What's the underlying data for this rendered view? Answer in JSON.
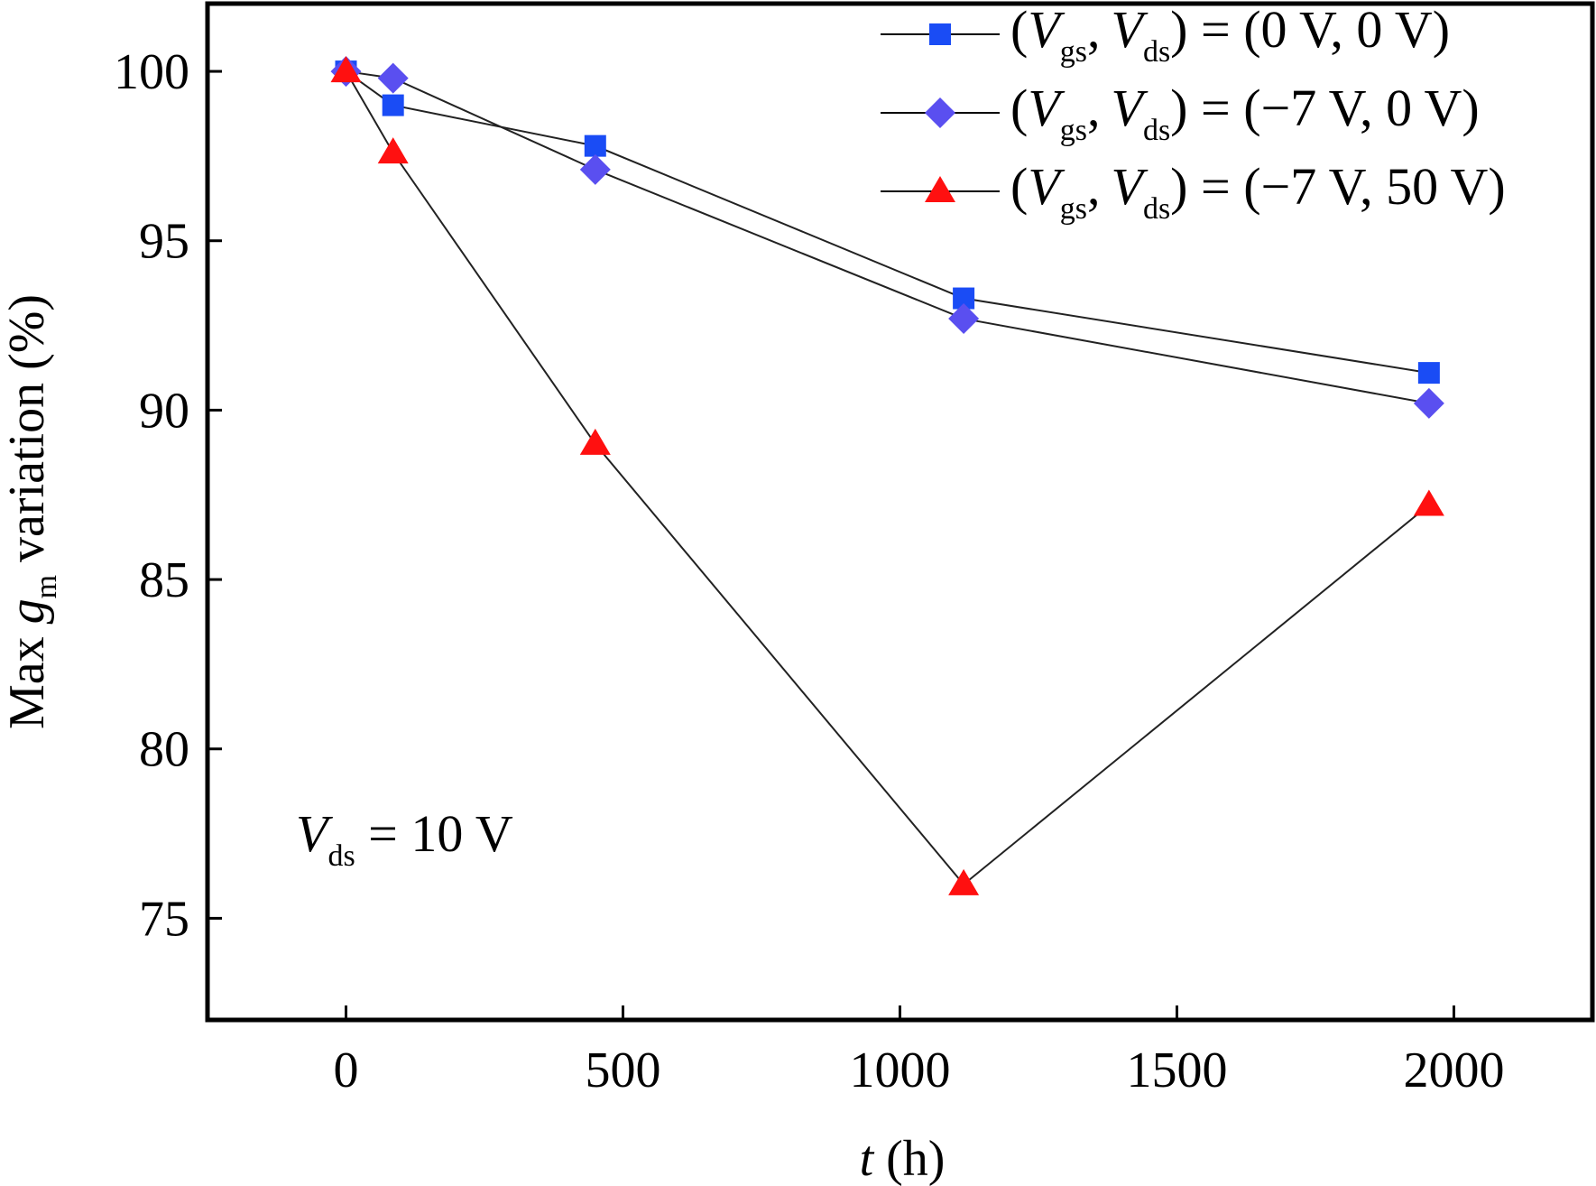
{
  "chart_data": {
    "type": "line",
    "xlabel_var": "t",
    "xlabel_unit": "(h)",
    "ylabel_prefix": "Max",
    "ylabel_var": "g",
    "ylabel_sub": "m",
    "ylabel_suffix": "variation (%)",
    "xlim": [
      -250,
      2250
    ],
    "ylim": [
      72,
      102
    ],
    "xticks": [
      0,
      500,
      1000,
      1500,
      2000
    ],
    "yticks": [
      75,
      80,
      85,
      90,
      95,
      100
    ],
    "grid": false,
    "legend_position": "top-right",
    "annotation": {
      "var": "V",
      "sub": "ds",
      "rest": " = 10 V"
    },
    "series": [
      {
        "legend_open": "(",
        "legend_var1": "V",
        "legend_sub1": "gs",
        "legend_sep": ",",
        "legend_var2": "V",
        "legend_sub2": "ds",
        "legend_value": ") = (0 V, 0 V)",
        "marker": "square",
        "color": "#1a4cf5",
        "x": [
          0,
          85,
          450,
          1115,
          1955
        ],
        "y": [
          100.0,
          99.0,
          97.8,
          93.3,
          91.1
        ]
      },
      {
        "legend_open": "(",
        "legend_var1": "V",
        "legend_sub1": "gs",
        "legend_sep": ",",
        "legend_var2": "V",
        "legend_sub2": "ds",
        "legend_value": ") = (−7 V, 0 V)",
        "marker": "diamond",
        "color": "#5a4ff0",
        "x": [
          0,
          85,
          450,
          1115,
          1955
        ],
        "y": [
          100.0,
          99.8,
          97.1,
          92.7,
          90.2
        ]
      },
      {
        "legend_open": "(",
        "legend_var1": "V",
        "legend_sub1": "gs",
        "legend_sep": ",",
        "legend_var2": "V",
        "legend_sub2": "ds",
        "legend_value": ") = (−7 V, 50 V)",
        "marker": "triangle",
        "color": "#ff1010",
        "x": [
          0,
          85,
          450,
          1115,
          1955
        ],
        "y": [
          100.0,
          97.6,
          89.0,
          76.0,
          87.2
        ]
      }
    ]
  }
}
